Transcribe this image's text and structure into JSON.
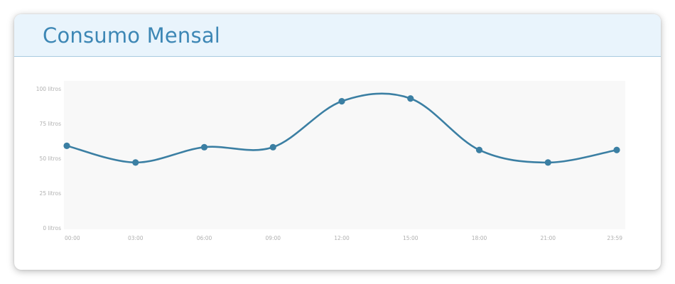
{
  "header": {
    "title": "Consumo Mensal"
  },
  "colors": {
    "header_bg": "#e9f4fc",
    "title": "#3d87b5",
    "line": "#3b7fa3",
    "plot_bg": "#f8f8f8",
    "tick_text": "#b0b0b0"
  },
  "chart_data": {
    "type": "line",
    "title": "Consumo Mensal",
    "xlabel": "",
    "ylabel": "",
    "categories": [
      "00:00",
      "03:00",
      "06:00",
      "09:00",
      "12:00",
      "15:00",
      "18:00",
      "21:00",
      "23:59"
    ],
    "series": [
      {
        "values": [
          59,
          47,
          58,
          58,
          91,
          93,
          56,
          47,
          56
        ]
      }
    ],
    "ylim": [
      0,
      100
    ],
    "yticks": [
      {
        "value": 0,
        "label": "0 litros"
      },
      {
        "value": 25,
        "label": "25 litros"
      },
      {
        "value": 50,
        "label": "50 litros"
      },
      {
        "value": 75,
        "label": "75 litros"
      },
      {
        "value": 100,
        "label": "100 litros"
      }
    ],
    "grid": false,
    "smooth": true,
    "markers": true,
    "legend": "none"
  }
}
